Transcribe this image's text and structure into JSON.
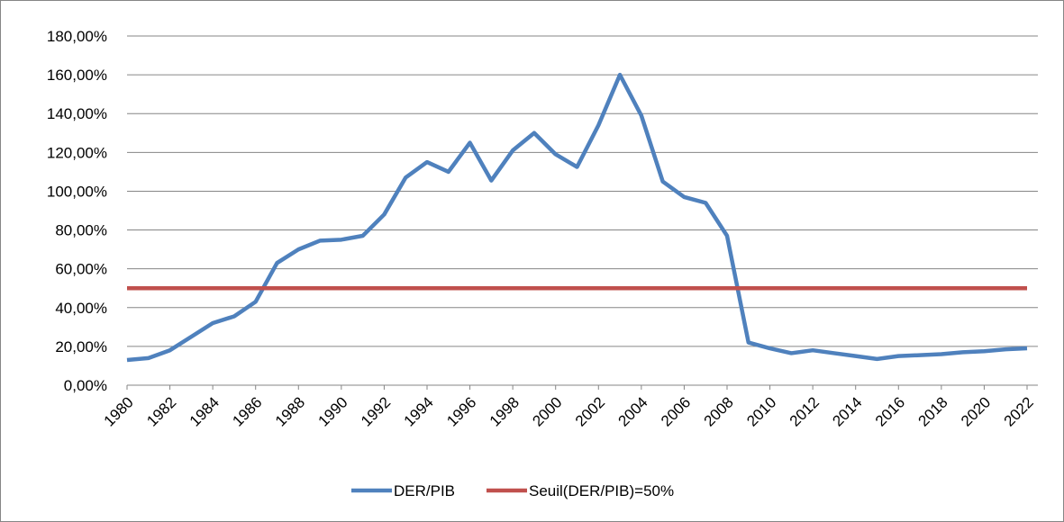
{
  "chart_data": {
    "type": "line",
    "x": [
      1980,
      1981,
      1982,
      1983,
      1984,
      1985,
      1986,
      1987,
      1988,
      1989,
      1990,
      1991,
      1992,
      1993,
      1994,
      1995,
      1996,
      1997,
      1998,
      1999,
      2000,
      2001,
      2002,
      2003,
      2004,
      2005,
      2006,
      2007,
      2008,
      2009,
      2010,
      2011,
      2012,
      2013,
      2014,
      2015,
      2016,
      2017,
      2018,
      2019,
      2020,
      2021,
      2022
    ],
    "xlim": [
      1980,
      2022
    ],
    "xticks": [
      1980,
      1982,
      1984,
      1986,
      1988,
      1990,
      1992,
      1994,
      1996,
      1998,
      2000,
      2002,
      2004,
      2006,
      2008,
      2010,
      2012,
      2014,
      2016,
      2018,
      2020,
      2022
    ],
    "ylim": [
      0,
      180
    ],
    "yticks": [
      {
        "value": 0,
        "label": "0,00%"
      },
      {
        "value": 20,
        "label": "20,00%"
      },
      {
        "value": 40,
        "label": "40,00%"
      },
      {
        "value": 60,
        "label": "60,00%"
      },
      {
        "value": 80,
        "label": "80,00%"
      },
      {
        "value": 100,
        "label": "100,00%"
      },
      {
        "value": 120,
        "label": "120,00%"
      },
      {
        "value": 140,
        "label": "140,00%"
      },
      {
        "value": 160,
        "label": "160,00%"
      },
      {
        "value": 180,
        "label": "180,00%"
      }
    ],
    "grid": true,
    "legend": "bottom",
    "series": [
      {
        "name": "DER/PIB",
        "color": "#4f81bd",
        "values": [
          13,
          14,
          18,
          25,
          32,
          35.5,
          43,
          63,
          70,
          74.5,
          75,
          77,
          88,
          107,
          115,
          110,
          125,
          105.5,
          121,
          130,
          119,
          112.5,
          134,
          160,
          139,
          105,
          97,
          94,
          77,
          22,
          19,
          16.5,
          18,
          16.5,
          15,
          13.5,
          15,
          15.5,
          16,
          17,
          17.5,
          18.5,
          19
        ]
      },
      {
        "name": "Seuil(DER/PIB)=50%",
        "color": "#c0504d",
        "values": [
          50,
          50,
          50,
          50,
          50,
          50,
          50,
          50,
          50,
          50,
          50,
          50,
          50,
          50,
          50,
          50,
          50,
          50,
          50,
          50,
          50,
          50,
          50,
          50,
          50,
          50,
          50,
          50,
          50,
          50,
          50,
          50,
          50,
          50,
          50,
          50,
          50,
          50,
          50,
          50,
          50,
          50,
          50
        ]
      }
    ]
  }
}
